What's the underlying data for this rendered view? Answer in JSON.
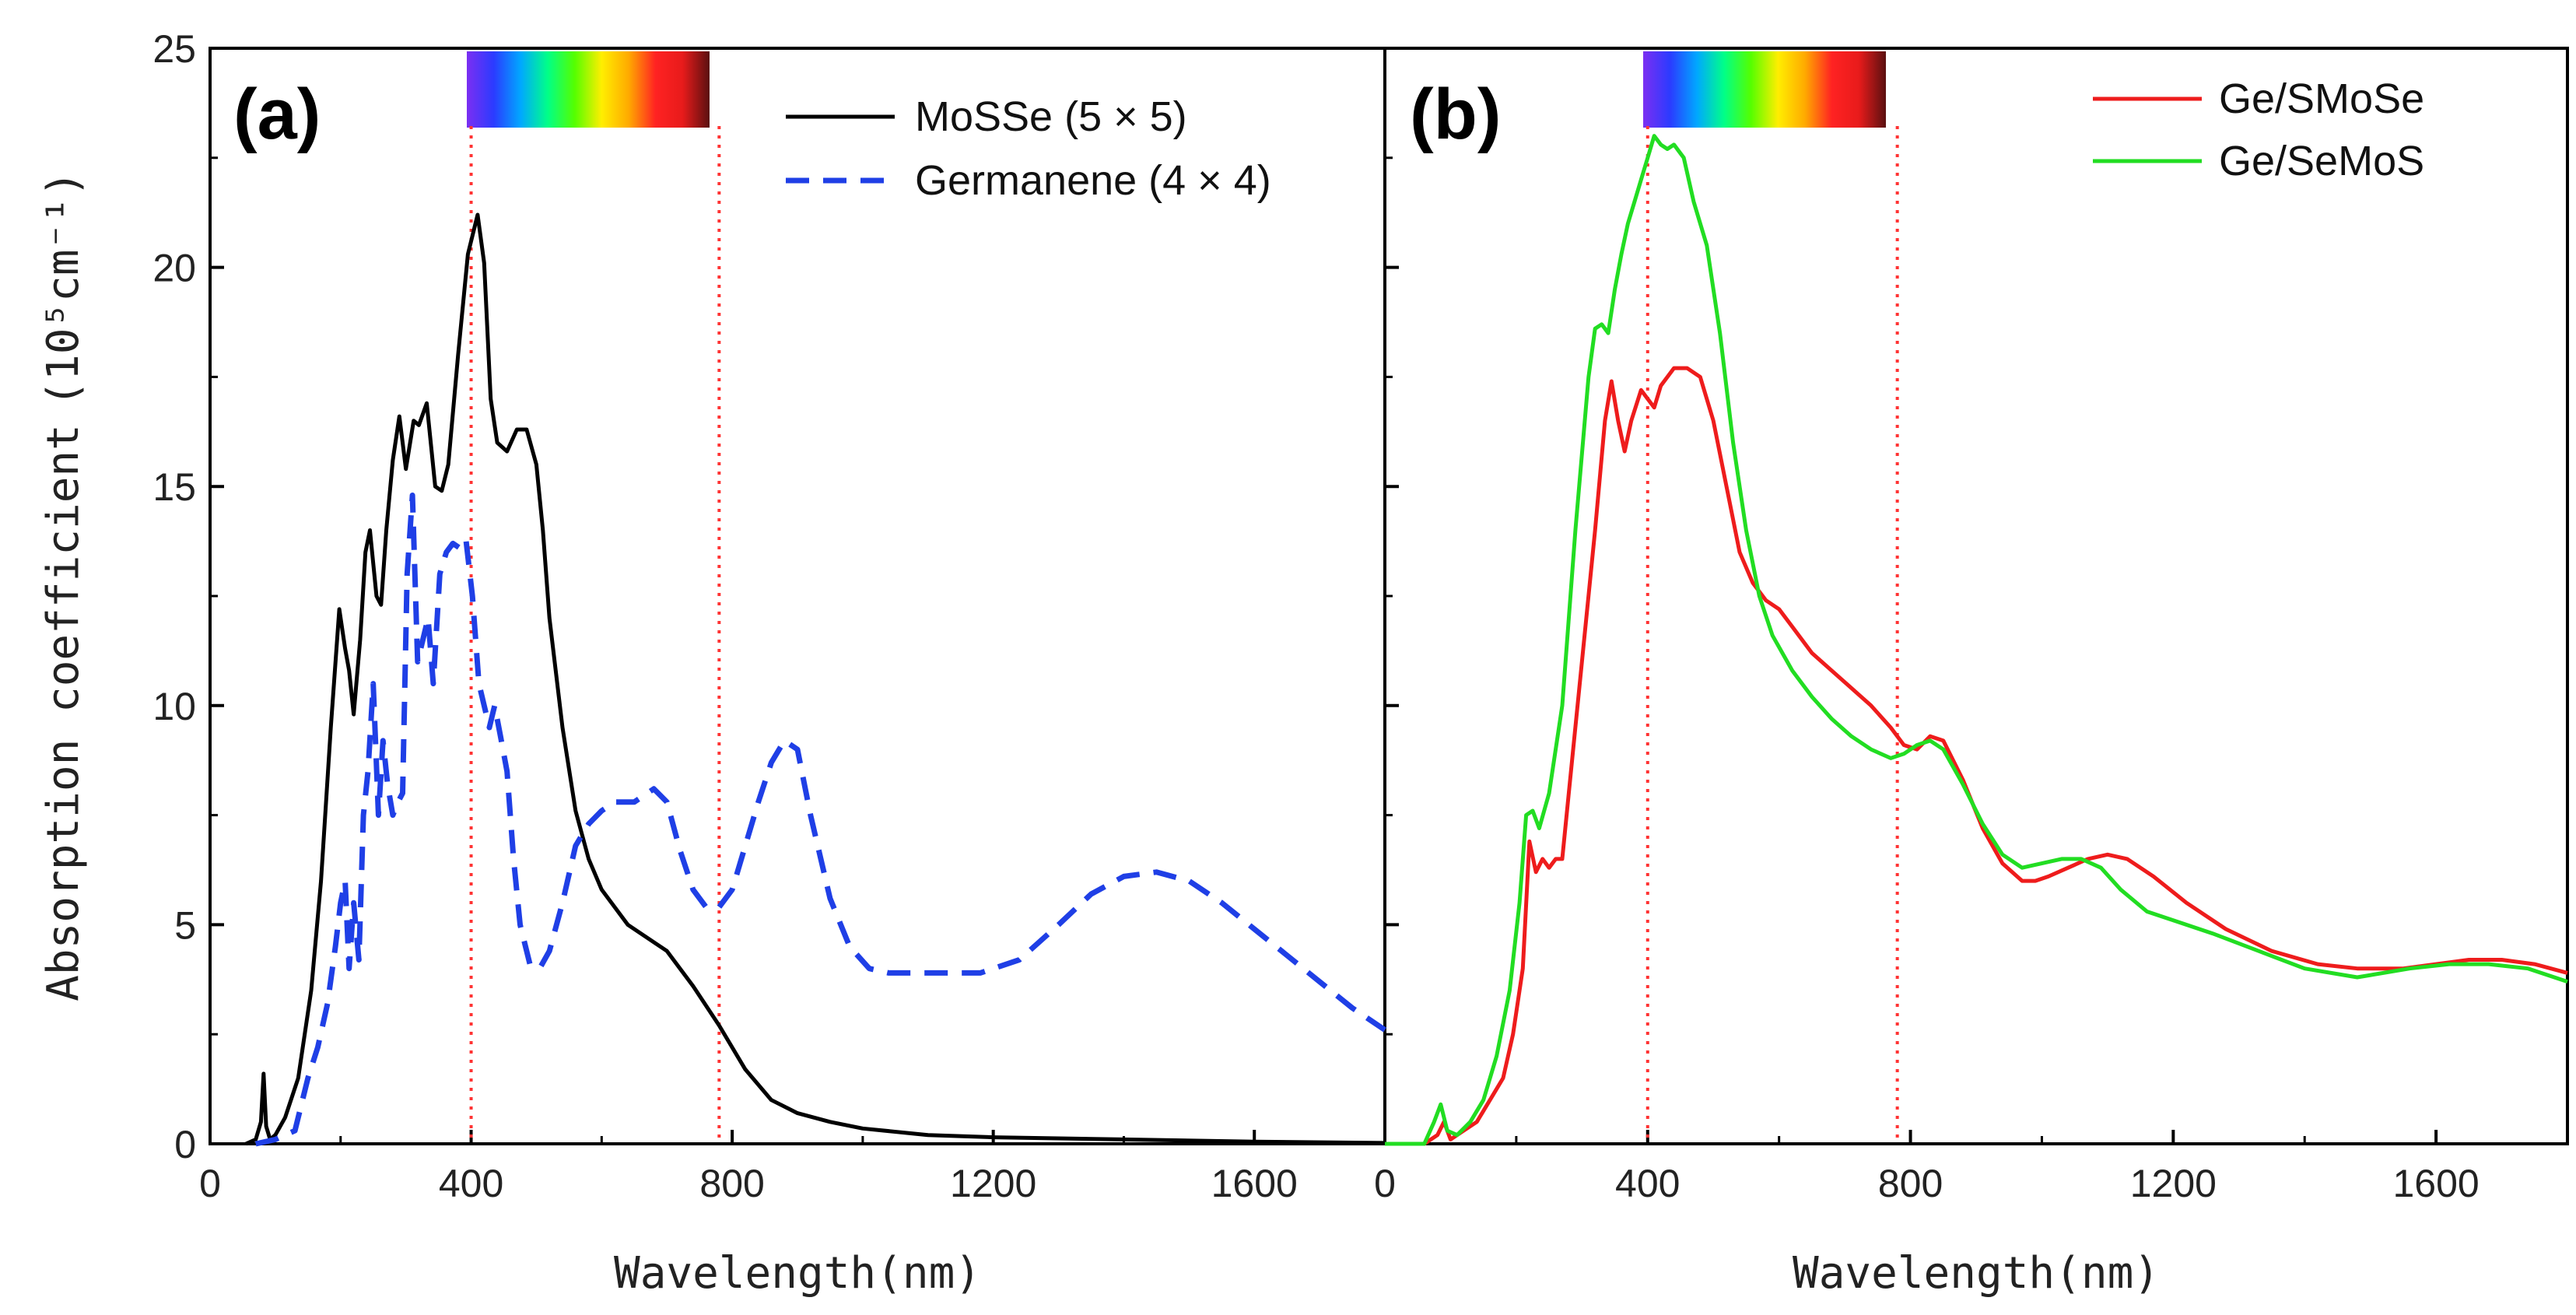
{
  "figure": {
    "ylabel_text": "Absorption coefficient",
    "ylabel_unit": "(10⁵cm⁻¹)"
  },
  "colors": {
    "mosse": "#000000",
    "germanene": "#1f3fe6",
    "ge_smose": "#ee1c1c",
    "ge_semos": "#22dd22",
    "guide": "#ff3333",
    "spectrum": [
      "#7b2ff2",
      "#2b3bff",
      "#00a8ff",
      "#00ff88",
      "#55ff00",
      "#ffee00",
      "#ffaa00",
      "#ff2222",
      "#e81b1b",
      "#5a1010"
    ]
  },
  "chart_data": [
    {
      "type": "line",
      "panel": "(a)",
      "xlabel": "Wavelength(nm)",
      "ylabel": "Absorption coefficient (10⁵cm⁻¹)",
      "xlim": [
        0,
        1800
      ],
      "ylim": [
        0,
        25
      ],
      "xticks": [
        0,
        400,
        800,
        1200,
        1600
      ],
      "yticks": [
        0,
        5,
        10,
        15,
        20,
        25
      ],
      "xtick_labels": [
        "0",
        "400",
        "800",
        "1200",
        "1600"
      ],
      "ytick_labels": [
        "0",
        "5",
        "10",
        "15",
        "20",
        "25"
      ],
      "visible_band_nm": [
        400,
        780
      ],
      "legend_position": "top-right",
      "series": [
        {
          "name": "MoSSe (5 × 5)",
          "style": "solid",
          "x": [
            55,
            70,
            78,
            82,
            86,
            92,
            100,
            115,
            135,
            155,
            170,
            185,
            198,
            207,
            213,
            220,
            230,
            238,
            245,
            255,
            262,
            270,
            280,
            290,
            300,
            312,
            320,
            332,
            345,
            355,
            365,
            380,
            395,
            410,
            420,
            430,
            440,
            455,
            470,
            485,
            500,
            510,
            520,
            540,
            560,
            580,
            600,
            640,
            680,
            700,
            740,
            780,
            820,
            860,
            900,
            950,
            1000,
            1100,
            1200,
            1400,
            1600,
            1800
          ],
          "y": [
            0,
            0.1,
            0.5,
            1.6,
            0.4,
            0.1,
            0.2,
            0.6,
            1.5,
            3.5,
            6.0,
            9.5,
            12.2,
            11.3,
            10.8,
            9.8,
            11.5,
            13.5,
            14.0,
            12.5,
            12.3,
            14.0,
            15.6,
            16.6,
            15.4,
            16.5,
            16.4,
            16.9,
            15.0,
            14.9,
            15.5,
            18.0,
            20.3,
            21.2,
            20.1,
            17.0,
            16.0,
            15.8,
            16.3,
            16.3,
            15.5,
            14.0,
            12.0,
            9.5,
            7.6,
            6.5,
            5.8,
            5.0,
            4.6,
            4.4,
            3.6,
            2.7,
            1.7,
            1.0,
            0.7,
            0.5,
            0.35,
            0.2,
            0.15,
            0.1,
            0.05,
            0.02
          ]
        },
        {
          "name": "Germanene (4 × 4)",
          "style": "dashed",
          "x": [
            70,
            100,
            130,
            150,
            165,
            180,
            192,
            200,
            207,
            213,
            220,
            228,
            235,
            242,
            250,
            258,
            265,
            272,
            280,
            288,
            295,
            302,
            310,
            318,
            326,
            334,
            342,
            352,
            362,
            372,
            382,
            392,
            402,
            412,
            420,
            428,
            436,
            445,
            455,
            465,
            475,
            490,
            505,
            520,
            540,
            560,
            580,
            600,
            620,
            650,
            680,
            700,
            720,
            740,
            760,
            780,
            800,
            820,
            840,
            860,
            880,
            900,
            920,
            950,
            980,
            1010,
            1040,
            1080,
            1120,
            1180,
            1240,
            1300,
            1350,
            1400,
            1450,
            1500,
            1550,
            1600,
            1650,
            1700,
            1750,
            1800
          ],
          "y": [
            0,
            0.1,
            0.3,
            1.5,
            2.2,
            3.2,
            4.5,
            5.5,
            6.0,
            4.0,
            5.5,
            4.2,
            7.5,
            8.5,
            10.5,
            7.5,
            9.2,
            8.2,
            7.5,
            7.8,
            8.0,
            13.0,
            14.8,
            11.0,
            11.5,
            12.0,
            10.5,
            13.0,
            13.5,
            13.7,
            13.6,
            13.8,
            12.5,
            10.5,
            10.0,
            9.5,
            10.0,
            9.3,
            8.5,
            6.5,
            5.0,
            4.1,
            4.0,
            4.4,
            5.5,
            6.8,
            7.3,
            7.6,
            7.8,
            7.8,
            8.1,
            7.8,
            6.7,
            5.8,
            5.4,
            5.4,
            5.8,
            6.8,
            7.8,
            8.7,
            9.2,
            9.0,
            7.5,
            5.6,
            4.5,
            4.0,
            3.9,
            3.9,
            3.9,
            3.9,
            4.2,
            5.0,
            5.7,
            6.1,
            6.2,
            6.0,
            5.5,
            4.9,
            4.3,
            3.7,
            3.1,
            2.6
          ]
        }
      ]
    },
    {
      "type": "line",
      "panel": "(b)",
      "xlabel": "Wavelength(nm)",
      "ylabel": "",
      "xlim": [
        0,
        1800
      ],
      "ylim": [
        0,
        25
      ],
      "xticks": [
        0,
        400,
        800,
        1200,
        1600
      ],
      "yticks": [
        0,
        5,
        10,
        15,
        20,
        25
      ],
      "xtick_labels": [
        "0",
        "400",
        "800",
        "1200",
        "1600"
      ],
      "ytick_labels": [],
      "visible_band_nm": [
        400,
        780
      ],
      "legend_position": "top-right",
      "series": [
        {
          "name": "Ge/SMoSe",
          "style": "solid",
          "x": [
            0,
            60,
            80,
            90,
            100,
            120,
            140,
            160,
            180,
            195,
            210,
            220,
            230,
            240,
            250,
            260,
            270,
            280,
            300,
            320,
            335,
            345,
            355,
            365,
            375,
            390,
            400,
            410,
            420,
            440,
            460,
            480,
            500,
            520,
            540,
            560,
            580,
            600,
            620,
            650,
            680,
            710,
            740,
            770,
            790,
            810,
            830,
            850,
            880,
            910,
            940,
            970,
            990,
            1010,
            1040,
            1070,
            1100,
            1130,
            1170,
            1220,
            1280,
            1350,
            1420,
            1480,
            1550,
            1600,
            1650,
            1700,
            1750,
            1800
          ],
          "y": [
            0,
            0,
            0.2,
            0.5,
            0.1,
            0.3,
            0.5,
            1.0,
            1.5,
            2.5,
            4.0,
            6.9,
            6.2,
            6.5,
            6.3,
            6.5,
            6.5,
            8.0,
            11.0,
            14.0,
            16.5,
            17.4,
            16.5,
            15.8,
            16.5,
            17.2,
            17.0,
            16.8,
            17.3,
            17.7,
            17.7,
            17.5,
            16.5,
            15.0,
            13.5,
            12.8,
            12.4,
            12.2,
            11.8,
            11.2,
            10.8,
            10.4,
            10.0,
            9.5,
            9.1,
            9.0,
            9.3,
            9.2,
            8.3,
            7.2,
            6.4,
            6.0,
            6.0,
            6.1,
            6.3,
            6.5,
            6.6,
            6.5,
            6.1,
            5.5,
            4.9,
            4.4,
            4.1,
            4.0,
            4.0,
            4.1,
            4.2,
            4.2,
            4.1,
            3.9
          ]
        },
        {
          "name": "Ge/SeMoS",
          "style": "solid",
          "x": [
            0,
            60,
            75,
            85,
            95,
            110,
            130,
            150,
            170,
            190,
            205,
            215,
            225,
            235,
            250,
            270,
            290,
            310,
            320,
            330,
            340,
            350,
            360,
            370,
            380,
            390,
            400,
            410,
            420,
            430,
            440,
            455,
            470,
            490,
            510,
            530,
            550,
            570,
            590,
            620,
            650,
            680,
            710,
            740,
            770,
            790,
            810,
            830,
            850,
            880,
            910,
            940,
            970,
            1000,
            1030,
            1060,
            1090,
            1120,
            1160,
            1200,
            1260,
            1330,
            1400,
            1480,
            1560,
            1620,
            1680,
            1740,
            1800
          ],
          "y": [
            0,
            0,
            0.5,
            0.9,
            0.3,
            0.2,
            0.5,
            1.0,
            2.0,
            3.5,
            5.5,
            7.5,
            7.6,
            7.2,
            8.0,
            10.0,
            14.0,
            17.5,
            18.6,
            18.7,
            18.5,
            19.5,
            20.3,
            21.0,
            21.5,
            22.0,
            22.5,
            23.0,
            22.8,
            22.7,
            22.8,
            22.5,
            21.5,
            20.5,
            18.5,
            16.0,
            14.0,
            12.5,
            11.6,
            10.8,
            10.2,
            9.7,
            9.3,
            9.0,
            8.8,
            8.9,
            9.1,
            9.2,
            9.0,
            8.2,
            7.3,
            6.6,
            6.3,
            6.4,
            6.5,
            6.5,
            6.3,
            5.8,
            5.3,
            5.1,
            4.8,
            4.4,
            4.0,
            3.8,
            4.0,
            4.1,
            4.1,
            4.0,
            3.7
          ]
        }
      ]
    }
  ]
}
